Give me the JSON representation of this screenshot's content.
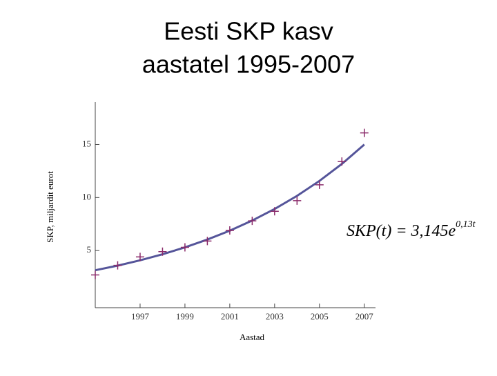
{
  "chart_data": {
    "type": "scatter",
    "title": [
      "Eesti SKP kasv",
      "aastatel 1995-2007"
    ],
    "x_label": "Aastad",
    "y_label": "SKP, miljardit eurot",
    "annotation": {
      "base": "SKP(t) = 3,145e",
      "exponent": "0,13t"
    },
    "x": [
      1995,
      1996,
      1997,
      1998,
      1999,
      2000,
      2001,
      2002,
      2003,
      2004,
      2005,
      2006,
      2007
    ],
    "series": [
      {
        "name": "SKP",
        "color": "#8a2a6a",
        "marker": "plus",
        "values": [
          2.7,
          3.6,
          4.4,
          4.9,
          5.3,
          5.9,
          6.9,
          7.8,
          8.7,
          9.7,
          11.2,
          13.4,
          16.1
        ]
      },
      {
        "name": "3,145e^0,13t",
        "color": "#55559a",
        "marker": "line",
        "values": [
          3.145,
          3.58,
          4.08,
          4.65,
          5.3,
          6.04,
          6.87,
          7.83,
          8.92,
          10.16,
          11.57,
          13.17,
          15.0
        ]
      }
    ],
    "xlim": [
      1995,
      2007.5
    ],
    "ylim": [
      0,
      19
    ],
    "xticks": [
      1997,
      1999,
      2001,
      2003,
      2005,
      2007
    ],
    "yticks": [
      5,
      10,
      15
    ]
  }
}
